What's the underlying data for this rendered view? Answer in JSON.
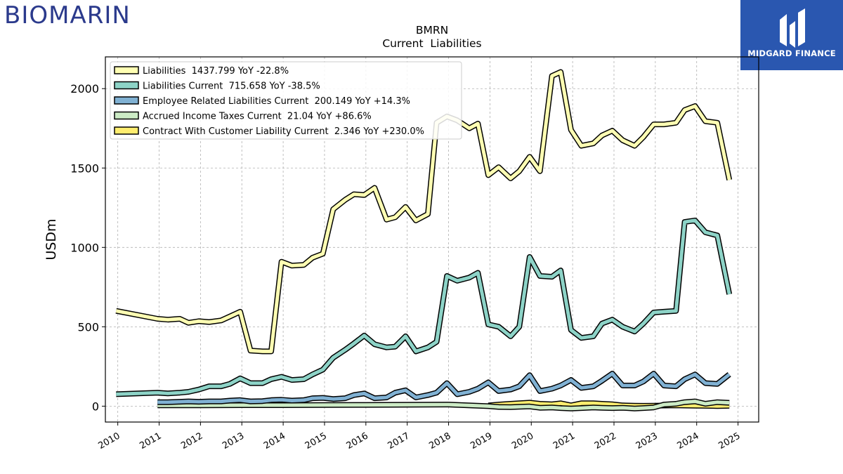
{
  "brand": {
    "left_logo": "BIOMARIN",
    "right_logo": "MIDGARD FINANCE"
  },
  "chart_data": {
    "type": "line",
    "title": "BMRN",
    "subtitle": "Current  Liabilities",
    "ylabel": "USDm",
    "xlabel": "",
    "xlim": [
      2009.7,
      2025.5
    ],
    "ylim": [
      -100,
      2200
    ],
    "yticks": [
      0,
      500,
      1000,
      1500,
      2000
    ],
    "xticks": [
      2010,
      2011,
      2012,
      2013,
      2014,
      2015,
      2016,
      2017,
      2018,
      2019,
      2020,
      2021,
      2022,
      2023,
      2024,
      2025
    ],
    "grid": true,
    "legend_position": "top-left",
    "series": [
      {
        "name": "Liabilities",
        "legend": "Liabilities  1437.799 YoY -22.8%",
        "color": "#ffffb3",
        "x": [
          2009.96,
          2010.96,
          2011.21,
          2011.5,
          2011.71,
          2011.96,
          2012.21,
          2012.5,
          2012.71,
          2012.96,
          2013.21,
          2013.5,
          2013.71,
          2013.96,
          2014.21,
          2014.5,
          2014.71,
          2014.96,
          2015.21,
          2015.5,
          2015.71,
          2015.96,
          2016.21,
          2016.5,
          2016.71,
          2016.96,
          2017.21,
          2017.5,
          2017.71,
          2017.96,
          2018.21,
          2018.5,
          2018.71,
          2018.96,
          2019.21,
          2019.5,
          2019.71,
          2019.96,
          2020.21,
          2020.5,
          2020.71,
          2020.96,
          2021.21,
          2021.5,
          2021.71,
          2021.96,
          2022.21,
          2022.5,
          2022.71,
          2022.96,
          2023.21,
          2023.5,
          2023.71,
          2023.96,
          2024.21,
          2024.5,
          2024.79
        ],
        "y": [
          600,
          550,
          545,
          550,
          525,
          535,
          530,
          540,
          565,
          595,
          350,
          345,
          345,
          910,
          885,
          890,
          935,
          960,
          1240,
          1300,
          1335,
          1330,
          1375,
          1175,
          1190,
          1255,
          1170,
          1210,
          1785,
          1825,
          1800,
          1750,
          1780,
          1455,
          1505,
          1435,
          1480,
          1570,
          1480,
          2080,
          2105,
          1740,
          1640,
          1655,
          1705,
          1735,
          1675,
          1640,
          1695,
          1775,
          1775,
          1785,
          1865,
          1890,
          1795,
          1785,
          1425
        ]
      },
      {
        "name": "Liabilities Current",
        "legend": "Liabilities Current  715.658 YoY -38.5%",
        "color": "#8dd3c7",
        "x": [
          2009.96,
          2010.96,
          2011.21,
          2011.5,
          2011.71,
          2011.96,
          2012.21,
          2012.5,
          2012.71,
          2012.96,
          2013.21,
          2013.5,
          2013.71,
          2013.96,
          2014.21,
          2014.5,
          2014.71,
          2014.96,
          2015.21,
          2015.5,
          2015.71,
          2015.96,
          2016.21,
          2016.5,
          2016.71,
          2016.96,
          2017.21,
          2017.5,
          2017.71,
          2017.96,
          2018.21,
          2018.5,
          2018.71,
          2018.96,
          2019.21,
          2019.5,
          2019.71,
          2019.96,
          2020.21,
          2020.5,
          2020.71,
          2020.96,
          2021.21,
          2021.5,
          2021.71,
          2021.96,
          2022.21,
          2022.5,
          2022.71,
          2022.96,
          2023.21,
          2023.5,
          2023.71,
          2023.96,
          2024.21,
          2024.5,
          2024.79
        ],
        "y": [
          75,
          85,
          80,
          85,
          90,
          105,
          125,
          125,
          140,
          175,
          145,
          145,
          170,
          185,
          165,
          170,
          200,
          230,
          305,
          355,
          395,
          445,
          390,
          370,
          375,
          440,
          345,
          370,
          405,
          820,
          790,
          810,
          840,
          515,
          500,
          440,
          500,
          940,
          820,
          815,
          855,
          480,
          430,
          440,
          520,
          545,
          500,
          470,
          520,
          590,
          595,
          600,
          1160,
          1170,
          1095,
          1075,
          705
        ]
      },
      {
        "name": "Employee Related Liabilities Current",
        "legend": "Employee Related Liabilities Current  200.149 YoY +14.3%",
        "color": "#80b1d3",
        "x": [
          2010.96,
          2011.21,
          2011.5,
          2011.71,
          2011.96,
          2012.21,
          2012.5,
          2012.71,
          2012.96,
          2013.21,
          2013.5,
          2013.71,
          2013.96,
          2014.21,
          2014.5,
          2014.71,
          2014.96,
          2015.21,
          2015.5,
          2015.71,
          2015.96,
          2016.21,
          2016.5,
          2016.71,
          2016.96,
          2017.21,
          2017.5,
          2017.71,
          2017.96,
          2018.21,
          2018.5,
          2018.71,
          2018.96,
          2019.21,
          2019.5,
          2019.71,
          2019.96,
          2020.21,
          2020.5,
          2020.71,
          2020.96,
          2021.21,
          2021.5,
          2021.71,
          2021.96,
          2022.21,
          2022.5,
          2022.71,
          2022.96,
          2023.21,
          2023.5,
          2023.71,
          2023.96,
          2024.21,
          2024.5,
          2024.79
        ],
        "y": [
          25,
          25,
          28,
          30,
          28,
          30,
          30,
          35,
          38,
          30,
          32,
          38,
          40,
          35,
          38,
          50,
          52,
          45,
          50,
          70,
          80,
          50,
          55,
          85,
          100,
          55,
          70,
          85,
          145,
          75,
          90,
          110,
          150,
          95,
          105,
          125,
          195,
          95,
          110,
          130,
          165,
          115,
          125,
          160,
          205,
          130,
          130,
          155,
          205,
          130,
          125,
          170,
          200,
          145,
          140,
          200
        ]
      },
      {
        "name": "Accrued Income Taxes Current",
        "legend": "Accrued Income Taxes Current  21.04 YoY +86.6%",
        "color": "#ccebc5",
        "x": [
          2010.96,
          2011.5,
          2012.0,
          2013.0,
          2014.0,
          2015.0,
          2016.0,
          2017.0,
          2018.0,
          2018.96,
          2019.21,
          2019.5,
          2019.71,
          2019.96,
          2020.21,
          2020.5,
          2020.71,
          2020.96,
          2021.21,
          2021.5,
          2021.71,
          2021.96,
          2022.21,
          2022.5,
          2022.71,
          2022.96,
          2023.21,
          2023.5,
          2023.71,
          2023.96,
          2024.21,
          2024.5,
          2024.79
        ],
        "y": [
          5,
          5,
          5,
          6,
          6,
          7,
          8,
          9,
          10,
          0,
          -5,
          -6,
          -4,
          -2,
          -10,
          -8,
          -12,
          -15,
          -12,
          -8,
          -10,
          -12,
          -10,
          -15,
          -12,
          -8,
          10,
          15,
          25,
          30,
          15,
          25,
          21
        ]
      },
      {
        "name": "Contract With Customer Liability Current",
        "legend": "Contract With Customer Liability Current  2.346 YoY +230.0%",
        "color": "#ffed6f",
        "x": [
          2018.96,
          2019.21,
          2019.5,
          2019.71,
          2019.96,
          2020.21,
          2020.5,
          2020.71,
          2020.96,
          2021.21,
          2021.5,
          2021.71,
          2021.96,
          2022.21,
          2022.5,
          2022.71,
          2022.96,
          2023.21,
          2023.5,
          2023.71,
          2023.96,
          2024.21,
          2024.5,
          2024.79
        ],
        "y": [
          5,
          10,
          15,
          18,
          22,
          15,
          12,
          18,
          5,
          18,
          18,
          15,
          12,
          5,
          3,
          2,
          3,
          4,
          5,
          4,
          3,
          2,
          1,
          2
        ]
      }
    ]
  }
}
